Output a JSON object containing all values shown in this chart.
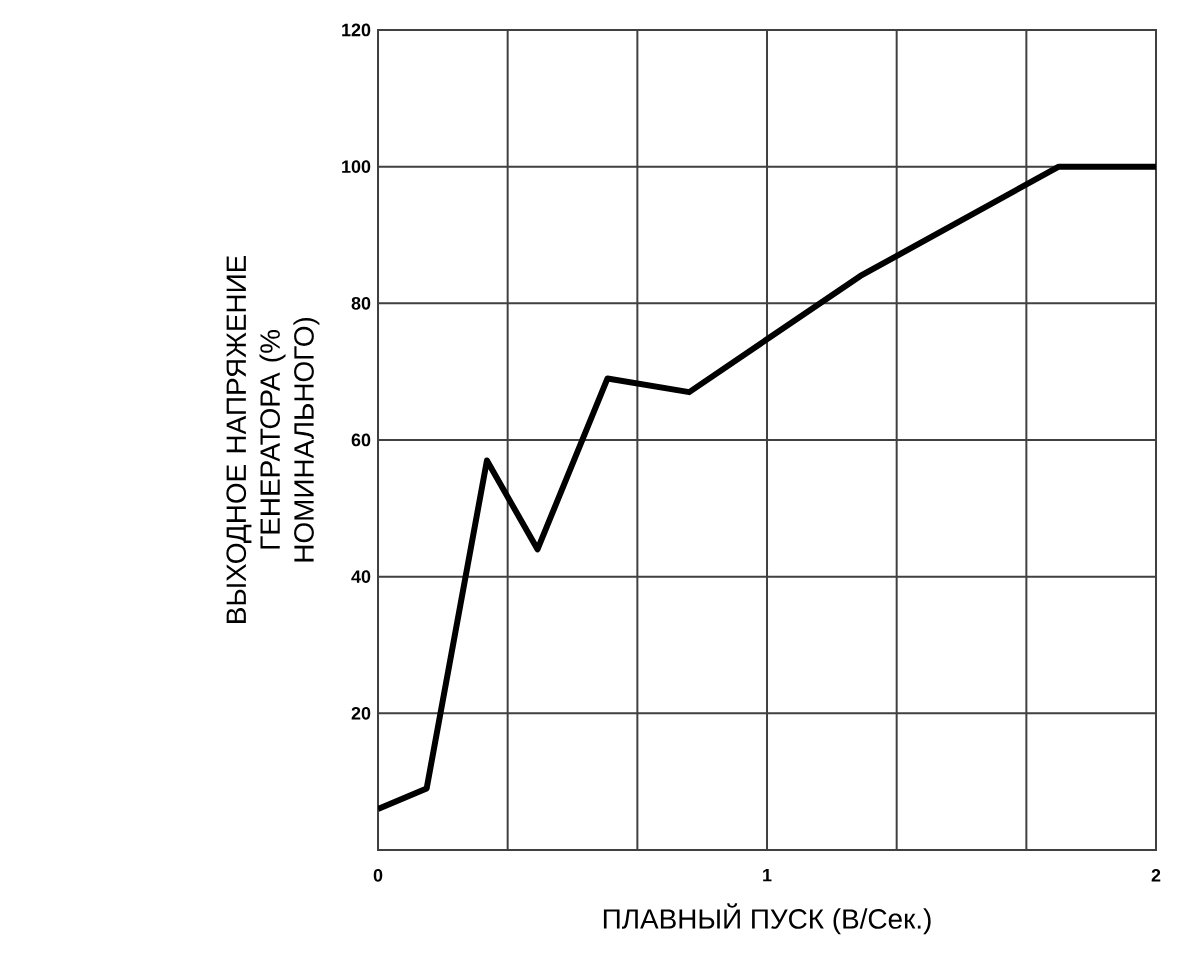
{
  "chart_data": {
    "type": "line",
    "xlabel": "ПЛАВНЫЙ ПУСК (В/Сек.)",
    "ylabel": "ВЫХОДНОЕ НАПРЯЖЕНИЕ ГЕНЕРАТОРА (% НОМИНАЛЬНОГО)",
    "x": [
      0,
      0.125,
      0.28,
      0.41,
      0.59,
      0.8,
      1.24,
      1.75,
      2
    ],
    "series": [
      {
        "color": "#000000",
        "values": [
          6,
          9,
          57,
          44,
          69,
          67,
          84,
          100,
          100
        ]
      }
    ],
    "xlim": [
      0,
      2
    ],
    "ylim": [
      0,
      120
    ],
    "xticks": [
      0,
      {
        "value": 0.3333,
        "label": null
      },
      {
        "value": 0.6667,
        "label": null
      },
      1,
      {
        "value": 1.3333,
        "label": null
      },
      {
        "value": 1.6667,
        "label": null
      },
      2
    ],
    "yticks": [
      {
        "value": 0,
        "label": null
      },
      20,
      40,
      60,
      80,
      100,
      120
    ],
    "grid": true,
    "marker": "none",
    "line_style": "solid"
  }
}
